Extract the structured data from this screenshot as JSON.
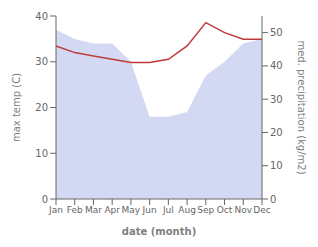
{
  "chart_data": {
    "type": "line",
    "xlabel": "date (month)",
    "ylabel": "max temp (C)",
    "y2label": "med. precipitation (kg/m2)",
    "categories": [
      "Jan",
      "Feb",
      "Mar",
      "Apr",
      "May",
      "Jun",
      "Jul",
      "Aug",
      "Sep",
      "Oct",
      "Nov",
      "Dec"
    ],
    "series": [
      {
        "type": "area",
        "color": "#aab3e8",
        "values": [
          37,
          35,
          34,
          34,
          30,
          18,
          18,
          19,
          27,
          30,
          34,
          35
        ]
      },
      {
        "type": "line",
        "color": "#c0393b",
        "axis": "y2",
        "values": [
          46,
          44,
          43,
          42,
          41,
          41,
          42,
          46,
          53,
          50,
          48,
          48
        ]
      }
    ],
    "ylim": [
      0,
      40
    ],
    "yticks": [
      0,
      10,
      20,
      30,
      40
    ],
    "y2lim": [
      0,
      55
    ],
    "y2ticks": [
      0,
      10,
      20,
      30,
      40,
      50
    ],
    "grid": false
  }
}
